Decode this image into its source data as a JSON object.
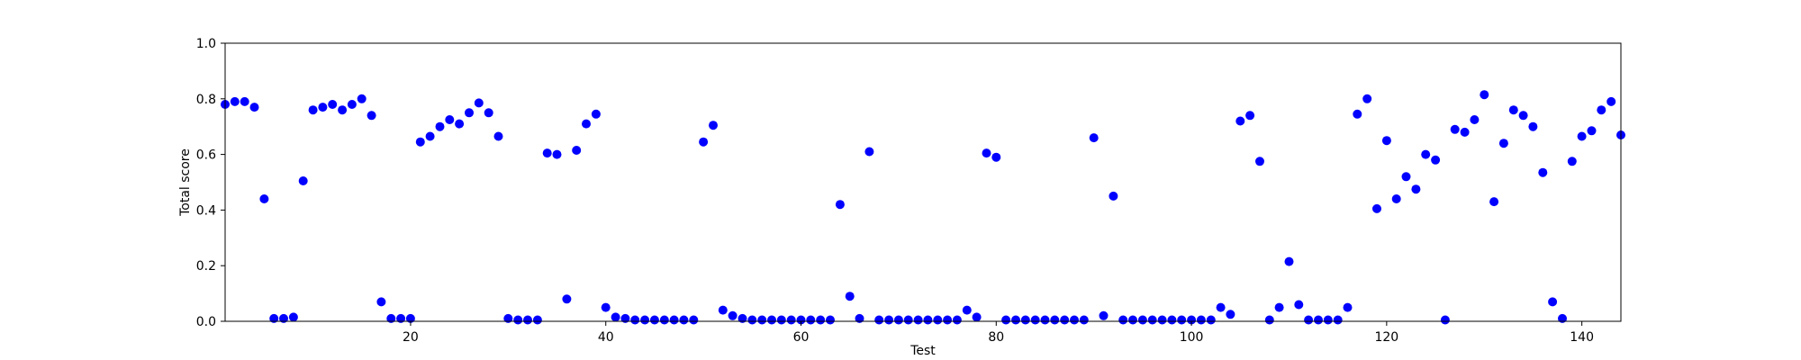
{
  "chart_data": {
    "type": "scatter",
    "title": "",
    "xlabel": "Test",
    "ylabel": "Total score",
    "xlim": [
      1,
      144
    ],
    "ylim": [
      0,
      1.0
    ],
    "xticks": [
      20,
      40,
      60,
      80,
      100,
      120,
      140
    ],
    "xtick_labels": [
      "20",
      "40",
      "60",
      "80",
      "100",
      "120",
      "140"
    ],
    "yticks": [
      0.0,
      0.2,
      0.4,
      0.6,
      0.8,
      1.0
    ],
    "ytick_labels": [
      "0.0",
      "0.2",
      "0.4",
      "0.6",
      "0.8",
      "1.0"
    ],
    "grid": false,
    "marker_color": "#0000ff",
    "x": [
      1,
      2,
      3,
      4,
      5,
      6,
      7,
      8,
      9,
      10,
      11,
      12,
      13,
      14,
      15,
      16,
      17,
      18,
      19,
      20,
      21,
      22,
      23,
      24,
      25,
      26,
      27,
      28,
      29,
      30,
      31,
      32,
      33,
      34,
      35,
      36,
      37,
      38,
      39,
      40,
      41,
      42,
      43,
      44,
      45,
      46,
      47,
      48,
      49,
      50,
      51,
      52,
      53,
      54,
      55,
      56,
      57,
      58,
      59,
      60,
      61,
      62,
      63,
      64,
      65,
      66,
      67,
      68,
      69,
      70,
      71,
      72,
      73,
      74,
      75,
      76,
      77,
      78,
      79,
      80,
      81,
      82,
      83,
      84,
      85,
      86,
      87,
      88,
      89,
      90,
      91,
      92,
      93,
      94,
      95,
      96,
      97,
      98,
      99,
      100,
      101,
      102,
      103,
      104,
      105,
      106,
      107,
      108,
      109,
      110,
      111,
      112,
      113,
      114,
      115,
      116,
      117,
      118,
      119,
      120,
      121,
      122,
      123,
      124,
      125,
      126,
      127,
      128,
      129,
      130,
      131,
      132,
      133,
      134,
      135,
      136,
      137,
      138,
      139,
      140,
      141,
      142,
      143,
      144
    ],
    "y": [
      0.78,
      0.79,
      0.79,
      0.77,
      0.44,
      0.01,
      0.01,
      0.015,
      0.505,
      0.76,
      0.77,
      0.78,
      0.76,
      0.78,
      0.8,
      0.74,
      0.07,
      0.01,
      0.01,
      0.01,
      0.645,
      0.665,
      0.7,
      0.725,
      0.71,
      0.75,
      0.785,
      0.75,
      0.665,
      0.01,
      0.005,
      0.005,
      0.005,
      0.605,
      0.6,
      0.08,
      0.615,
      0.71,
      0.745,
      0.05,
      0.015,
      0.01,
      0.005,
      0.005,
      0.005,
      0.005,
      0.005,
      0.005,
      0.005,
      0.645,
      0.705,
      0.04,
      0.02,
      0.01,
      0.005,
      0.005,
      0.005,
      0.005,
      0.005,
      0.005,
      0.005,
      0.005,
      0.005,
      0.42,
      0.09,
      0.01,
      0.61,
      0.005,
      0.005,
      0.005,
      0.005,
      0.005,
      0.005,
      0.005,
      0.005,
      0.005,
      0.04,
      0.015,
      0.605,
      0.59,
      0.005,
      0.005,
      0.005,
      0.005,
      0.005,
      0.005,
      0.005,
      0.005,
      0.005,
      0.66,
      0.02,
      0.45,
      0.005,
      0.005,
      0.005,
      0.005,
      0.005,
      0.005,
      0.005,
      0.005,
      0.005,
      0.005,
      0.05,
      0.025,
      0.72,
      0.74,
      0.575,
      0.005,
      0.05,
      0.215,
      0.06,
      0.005,
      0.005,
      0.005,
      0.005,
      0.05,
      0.745,
      0.8,
      0.405,
      0.65,
      0.44,
      0.52,
      0.475,
      0.6,
      0.58,
      0.005,
      0.69,
      0.68,
      0.725,
      0.815,
      0.43,
      0.64,
      0.76,
      0.74,
      0.7,
      0.535,
      0.07,
      0.01,
      0.575,
      0.665,
      0.685,
      0.76,
      0.79,
      0.67
    ]
  }
}
